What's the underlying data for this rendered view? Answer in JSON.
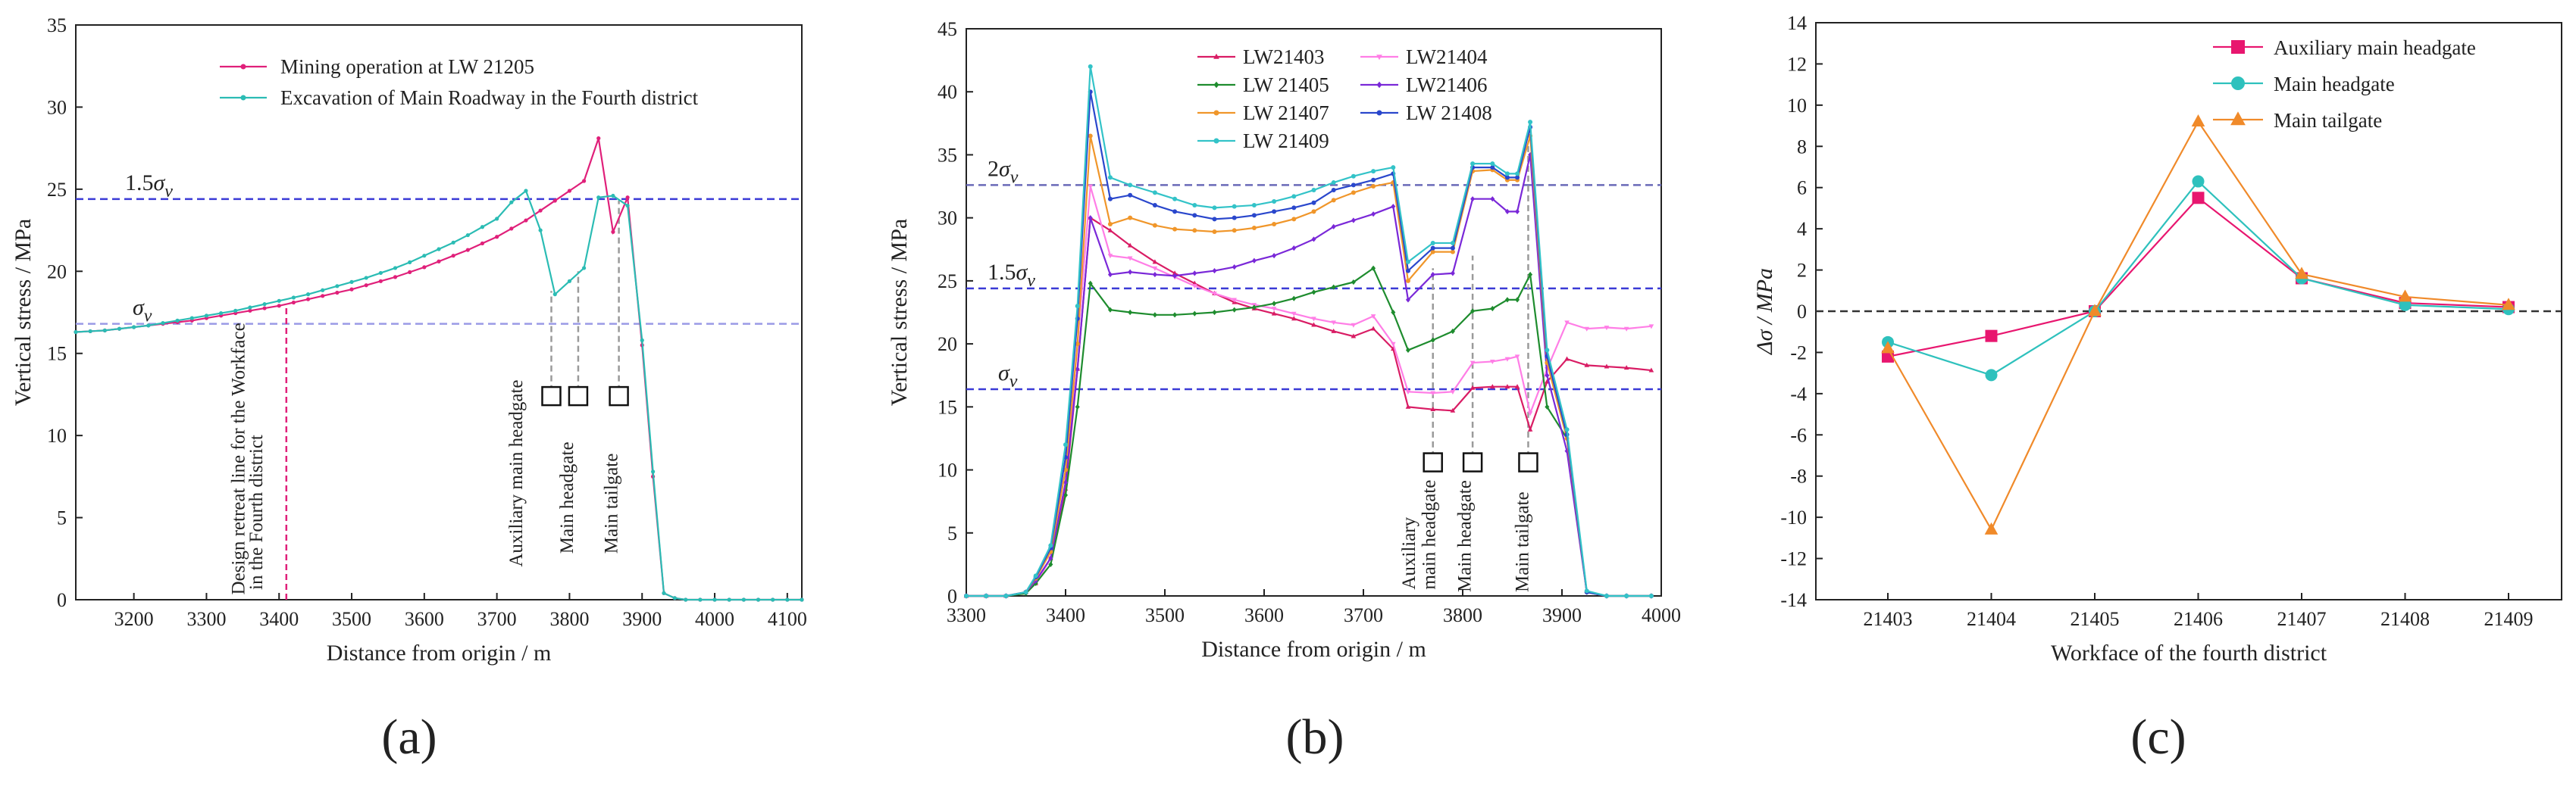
{
  "figure": {
    "panel_labels": [
      "(a)",
      "(b)",
      "(c)"
    ]
  },
  "chart_data": [
    {
      "type": "line",
      "panel": "(a)",
      "xlabel": "Distance from origin / m",
      "ylabel": "Vertical stress / MPa",
      "xlim": [
        3120,
        4120
      ],
      "ylim": [
        0,
        35
      ],
      "xticks": [
        3200,
        3300,
        3400,
        3500,
        3600,
        3700,
        3800,
        3900,
        4000,
        4100
      ],
      "yticks": [
        0,
        5,
        10,
        15,
        20,
        25,
        30,
        35
      ],
      "series": [
        {
          "name": "Mining operation at LW 21205",
          "color": "#e0207a",
          "marker": "dot",
          "x": [
            3120,
            3140,
            3160,
            3180,
            3200,
            3220,
            3240,
            3260,
            3280,
            3300,
            3320,
            3340,
            3360,
            3380,
            3400,
            3420,
            3440,
            3460,
            3480,
            3500,
            3520,
            3540,
            3560,
            3580,
            3600,
            3620,
            3640,
            3660,
            3680,
            3700,
            3720,
            3740,
            3760,
            3780,
            3800,
            3820,
            3840,
            3860,
            3880,
            3900,
            3915,
            3930,
            3945,
            3960,
            3980,
            4000,
            4020,
            4040,
            4060,
            4080,
            4100,
            4120
          ],
          "y": [
            16.3,
            16.35,
            16.4,
            16.5,
            16.6,
            16.7,
            16.8,
            16.9,
            17.0,
            17.15,
            17.3,
            17.45,
            17.6,
            17.75,
            17.9,
            18.1,
            18.3,
            18.5,
            18.7,
            18.9,
            19.15,
            19.4,
            19.65,
            19.95,
            20.25,
            20.6,
            20.95,
            21.3,
            21.7,
            22.1,
            22.6,
            23.1,
            23.7,
            24.3,
            24.9,
            25.5,
            28.1,
            22.4,
            24.5,
            15.5,
            7.5,
            0.4,
            0.1,
            0,
            0,
            0,
            0,
            0,
            0,
            0,
            0,
            0
          ]
        },
        {
          "name": "Excavation of Main Roadway in the Fourth district",
          "color": "#2bbcb4",
          "marker": "dot",
          "x": [
            3120,
            3140,
            3160,
            3180,
            3200,
            3220,
            3240,
            3260,
            3280,
            3300,
            3320,
            3340,
            3360,
            3380,
            3400,
            3420,
            3440,
            3460,
            3480,
            3500,
            3520,
            3540,
            3560,
            3580,
            3600,
            3620,
            3640,
            3660,
            3680,
            3700,
            3720,
            3740,
            3760,
            3780,
            3800,
            3820,
            3840,
            3860,
            3880,
            3900,
            3915,
            3930,
            3945,
            3960,
            3980,
            4000,
            4020,
            4040,
            4060,
            4080,
            4100,
            4120
          ],
          "y": [
            16.3,
            16.35,
            16.4,
            16.5,
            16.6,
            16.7,
            16.85,
            17.0,
            17.15,
            17.3,
            17.45,
            17.6,
            17.8,
            18.0,
            18.2,
            18.4,
            18.6,
            18.85,
            19.1,
            19.35,
            19.6,
            19.9,
            20.2,
            20.55,
            20.95,
            21.35,
            21.75,
            22.2,
            22.7,
            23.2,
            24.2,
            24.9,
            22.5,
            18.6,
            19.4,
            20.2,
            24.5,
            24.6,
            24.0,
            15.8,
            7.8,
            0.4,
            0.1,
            0,
            0,
            0,
            0,
            0,
            0,
            0,
            0,
            0
          ]
        }
      ],
      "hlines": [
        {
          "label": "1.5σv",
          "base": "σ",
          "sub": "v",
          "prefix": "1.5",
          "value": 24.4,
          "color": "#3b3bd6"
        },
        {
          "label": "σv",
          "base": "σ",
          "sub": "v",
          "prefix": "",
          "value": 16.8,
          "color": "#9a9ae6"
        }
      ],
      "vlines": [
        {
          "x": 3410,
          "color": "#e0207a",
          "from": 0,
          "to": 17.8,
          "style": "dash"
        },
        {
          "x": 3775,
          "color": "#9a9a9a",
          "from": 12.7,
          "to": 18.8,
          "style": "dash"
        },
        {
          "x": 3812,
          "color": "#9a9a9a",
          "from": 12.7,
          "to": 20.0,
          "style": "dash"
        },
        {
          "x": 3868,
          "color": "#9a9a9a",
          "from": 12.7,
          "to": 24.3,
          "style": "dash"
        }
      ],
      "markers": [
        {
          "x": 3775,
          "y": 12.4
        },
        {
          "x": 3812,
          "y": 12.4
        },
        {
          "x": 3868,
          "y": 12.4
        }
      ],
      "annotations": [
        {
          "text": "Design retreat line for the Workface",
          "x": 3352,
          "y": 0.3
        },
        {
          "text": "in the Fourth district",
          "x": 3377,
          "y": 0.6
        },
        {
          "text": "Auxiliary main headgate",
          "x": 3735,
          "y": 2.0
        },
        {
          "text": "Main headgate",
          "x": 3805,
          "y": 2.8
        },
        {
          "text": "Main tailgate",
          "x": 3866,
          "y": 2.8
        }
      ],
      "legend": {
        "placement": "top-right"
      }
    },
    {
      "type": "line",
      "panel": "(b)",
      "xlabel": "Distance from origin / m",
      "ylabel": "Vertical stress / MPa",
      "xlim": [
        3300,
        4000
      ],
      "ylim": [
        0,
        45
      ],
      "xticks": [
        3300,
        3400,
        3500,
        3600,
        3700,
        3800,
        3900,
        4000
      ],
      "yticks": [
        0,
        5,
        10,
        15,
        20,
        25,
        30,
        35,
        40,
        45
      ],
      "x": [
        3300,
        3320,
        3340,
        3360,
        3370,
        3385,
        3400,
        3412,
        3425,
        3445,
        3465,
        3490,
        3510,
        3530,
        3550,
        3570,
        3590,
        3610,
        3630,
        3650,
        3670,
        3690,
        3710,
        3730,
        3745,
        3770,
        3790,
        3810,
        3830,
        3845,
        3855,
        3868,
        3885,
        3905,
        3925,
        3945,
        3965,
        3990
      ],
      "series": [
        {
          "name": "LW21403",
          "color": "#d91c64",
          "marker": "triangle",
          "y": [
            0,
            0,
            0,
            0.3,
            1,
            3,
            8.5,
            18,
            30,
            29,
            27.8,
            26.5,
            25.6,
            24.8,
            24.0,
            23.3,
            22.8,
            22.4,
            22.0,
            21.5,
            21.0,
            20.6,
            21.2,
            19.6,
            15.0,
            14.8,
            14.7,
            16.5,
            16.6,
            16.6,
            16.6,
            13.2,
            17.0,
            18.8,
            18.3,
            18.2,
            18.1,
            17.9
          ]
        },
        {
          "name": "LW21404",
          "color": "#ff7ee6",
          "marker": "triangle-down",
          "y": [
            0,
            0,
            0,
            0.3,
            1,
            3,
            9,
            20,
            32.5,
            27,
            26.8,
            26.0,
            25.3,
            24.6,
            24.0,
            23.5,
            23.1,
            22.8,
            22.4,
            22.0,
            21.7,
            21.5,
            22.2,
            20.0,
            16.2,
            16.1,
            16.2,
            18.5,
            18.6,
            18.8,
            19.0,
            14.5,
            18.0,
            21.7,
            21.2,
            21.3,
            21.2,
            21.4
          ]
        },
        {
          "name": "LW 21405",
          "color": "#1e8c2e",
          "marker": "diamond",
          "y": [
            0,
            0,
            0,
            0.2,
            1,
            2.5,
            8,
            15,
            24.8,
            22.7,
            22.5,
            22.3,
            22.3,
            22.4,
            22.5,
            22.7,
            22.9,
            23.2,
            23.6,
            24.1,
            24.5,
            24.9,
            26.0,
            22.5,
            19.5,
            20.3,
            21.0,
            22.6,
            22.8,
            23.5,
            23.5,
            25.5,
            15.0,
            12.5,
            0.3,
            0,
            0,
            0
          ]
        },
        {
          "name": "LW21406",
          "color": "#7a28d8",
          "marker": "diamond",
          "y": [
            0,
            0,
            0,
            0.3,
            1.2,
            3,
            9,
            18,
            30,
            25.5,
            25.7,
            25.5,
            25.4,
            25.6,
            25.8,
            26.1,
            26.6,
            27.0,
            27.6,
            28.3,
            29.3,
            29.8,
            30.3,
            30.9,
            23.5,
            25.5,
            25.6,
            31.5,
            31.5,
            30.5,
            30.5,
            35,
            17.5,
            11.5,
            0.3,
            0,
            0,
            0
          ]
        },
        {
          "name": "LW 21407",
          "color": "#f0962a",
          "marker": "circle",
          "y": [
            0,
            0,
            0,
            0.3,
            1.4,
            3.5,
            10,
            20,
            36.5,
            29.5,
            30.0,
            29.4,
            29.1,
            29.0,
            28.9,
            29.0,
            29.2,
            29.5,
            29.9,
            30.5,
            31.4,
            32.0,
            32.5,
            32.8,
            25.0,
            27.3,
            27.3,
            33.7,
            33.8,
            33.0,
            33.0,
            36.5,
            18.5,
            12.5,
            0.3,
            0,
            0,
            0
          ]
        },
        {
          "name": "LW 21408",
          "color": "#2a47cc",
          "marker": "circle",
          "y": [
            0,
            0,
            0,
            0.3,
            1.5,
            3.8,
            11,
            22,
            40,
            31.5,
            31.8,
            31.0,
            30.5,
            30.2,
            29.9,
            30.0,
            30.2,
            30.5,
            30.8,
            31.2,
            32.2,
            32.6,
            33.0,
            33.5,
            25.8,
            27.6,
            27.6,
            34.0,
            34.0,
            33.2,
            33.2,
            37.2,
            19.0,
            12.8,
            0.3,
            0,
            0,
            0
          ]
        },
        {
          "name": "LW 21409",
          "color": "#33c3c8",
          "marker": "circle",
          "y": [
            0,
            0,
            0,
            0.3,
            1.6,
            4,
            12,
            23,
            42,
            33.2,
            32.6,
            32.0,
            31.5,
            31.0,
            30.8,
            30.9,
            31.0,
            31.3,
            31.7,
            32.2,
            32.8,
            33.3,
            33.7,
            34.0,
            26.5,
            28.0,
            28.0,
            34.3,
            34.3,
            33.5,
            33.5,
            37.6,
            19.5,
            13.2,
            0.4,
            0,
            0,
            0
          ]
        }
      ],
      "hlines": [
        {
          "label": "2σv",
          "base": "σ",
          "sub": "v",
          "prefix": "2",
          "value": 32.6,
          "color": "#6a6ab8"
        },
        {
          "label": "1.5σv",
          "base": "σ",
          "sub": "v",
          "prefix": "1.5",
          "value": 24.4,
          "color": "#3b3bd6"
        },
        {
          "label": "σv",
          "base": "σ",
          "sub": "v",
          "prefix": "",
          "value": 16.4,
          "color": "#3b3bd6"
        }
      ],
      "vlines": [
        {
          "x": 3770,
          "color": "#9a9a9a",
          "from": 11.0,
          "to": 26.0,
          "style": "dash"
        },
        {
          "x": 3810,
          "color": "#9a9a9a",
          "from": 11.0,
          "to": 27.0,
          "style": "dash"
        },
        {
          "x": 3866,
          "color": "#9a9a9a",
          "from": 11.0,
          "to": 36.0,
          "style": "dash"
        }
      ],
      "markers": [
        {
          "x": 3770,
          "y": 10.6
        },
        {
          "x": 3810,
          "y": 10.6
        },
        {
          "x": 3866,
          "y": 10.6
        }
      ],
      "annotations": [
        {
          "text": "Auxiliary",
          "x": 3752,
          "y": 0.5
        },
        {
          "text": "main headgate",
          "x": 3772,
          "y": 0.5
        },
        {
          "text": "Main headgate",
          "x": 3808,
          "y": 0.3
        },
        {
          "text": "Main tailgate",
          "x": 3866,
          "y": 0.3
        }
      ],
      "legend": {
        "placement": "top-center",
        "columns": 2
      }
    },
    {
      "type": "line",
      "panel": "(c)",
      "xlabel": "Workface of the fourth district",
      "ylabel": "Δσ / MPa",
      "categories": [
        "21403",
        "21404",
        "21405",
        "21406",
        "21407",
        "21408",
        "21409"
      ],
      "ylim": [
        -14,
        14
      ],
      "yticks": [
        -14,
        -12,
        -10,
        -8,
        -6,
        -4,
        -2,
        0,
        2,
        4,
        6,
        8,
        10,
        12,
        14
      ],
      "series": [
        {
          "name": "Auxiliary main headgate",
          "color": "#e8166f",
          "marker": "square",
          "values": [
            -2.2,
            -1.2,
            0,
            5.5,
            1.6,
            0.4,
            0.2
          ]
        },
        {
          "name": "Main headgate",
          "color": "#2ec1bd",
          "marker": "circle",
          "values": [
            -1.5,
            -3.1,
            0,
            6.3,
            1.6,
            0.3,
            0.1
          ]
        },
        {
          "name": "Main tailgate",
          "color": "#f08a2a",
          "marker": "triangle",
          "values": [
            -1.8,
            -10.6,
            0,
            9.2,
            1.8,
            0.7,
            0.3
          ]
        }
      ],
      "hlines": [
        {
          "label": "",
          "value": 0,
          "color": "#333333"
        }
      ],
      "legend": {
        "placement": "top-right"
      }
    }
  ]
}
